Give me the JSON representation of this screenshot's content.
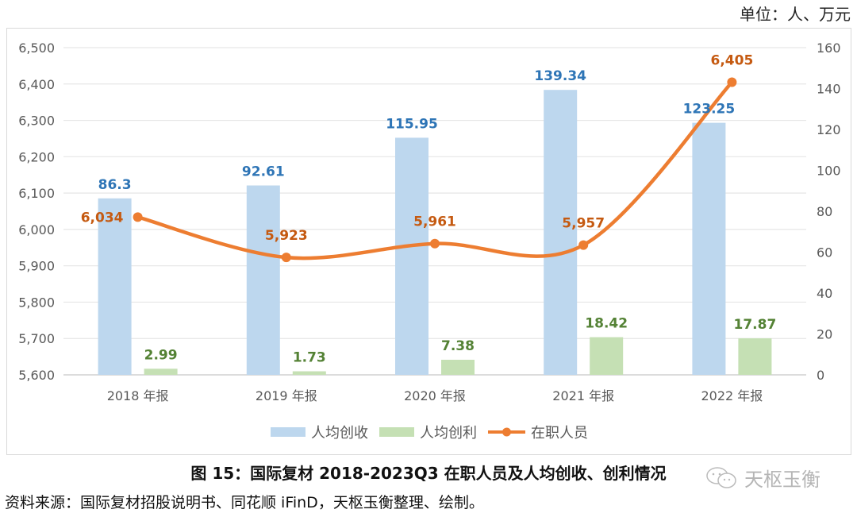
{
  "unit_label": "单位：人、万元",
  "caption": {
    "prefix": "图 15：",
    "text": "国际复材 2018-2023Q3 在职人员及人均创收、创利情况"
  },
  "source": "资料来源：国际复材招股说明书、同花顺 iFinD，天枢玉衡整理、绘制。",
  "watermark": "天枢玉衡",
  "chart_data": {
    "type": "bar",
    "title": "",
    "xlabel": "",
    "ylabel": "",
    "categories": [
      "2018 年报",
      "2019 年报",
      "2020 年报",
      "2021 年报",
      "2022 年报"
    ],
    "series": [
      {
        "name": "人均创收",
        "type": "bar",
        "axis": "right",
        "color": "#bdd7ee",
        "label_color": "#2e75b6",
        "values": [
          86.3,
          92.61,
          115.95,
          139.34,
          123.25
        ],
        "labels": [
          "86.3",
          "92.61",
          "115.95",
          "139.34",
          "123.25"
        ]
      },
      {
        "name": "人均创利",
        "type": "bar",
        "axis": "right",
        "color": "#c5e0b4",
        "label_color": "#548235",
        "values": [
          2.99,
          1.73,
          7.38,
          18.42,
          17.87
        ],
        "labels": [
          "2.99",
          "1.73",
          "7.38",
          "18.42",
          "17.87"
        ]
      },
      {
        "name": "在职人员",
        "type": "line",
        "axis": "left",
        "color": "#ed7d31",
        "label_color": "#c55a11",
        "values": [
          6034,
          5923,
          5961,
          5957,
          6405
        ],
        "labels": [
          "6,034",
          "5,923",
          "5,961",
          "5,957",
          "6,405"
        ]
      }
    ],
    "y_left": {
      "min": 5600,
      "max": 6500,
      "step": 100,
      "ticks": [
        "5,600",
        "5,700",
        "5,800",
        "5,900",
        "6,000",
        "6,100",
        "6,200",
        "6,300",
        "6,400",
        "6,500"
      ]
    },
    "y_right": {
      "min": 0,
      "max": 160,
      "step": 20,
      "ticks": [
        "0",
        "20",
        "40",
        "60",
        "80",
        "100",
        "120",
        "140",
        "160"
      ]
    },
    "grid": true,
    "legend": "bottom"
  }
}
